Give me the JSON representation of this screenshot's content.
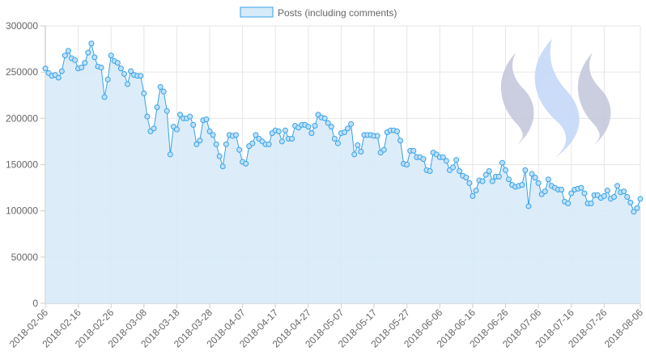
{
  "chart_data": {
    "type": "area",
    "series": [
      {
        "name": "Posts (including comments)",
        "color": "#36a2eb",
        "fill": "#d6eaf8",
        "values": [
          254000,
          249000,
          246000,
          247000,
          244000,
          251000,
          268000,
          273000,
          265000,
          263000,
          254000,
          255000,
          260000,
          271000,
          281000,
          266000,
          256000,
          255000,
          223000,
          242000,
          268000,
          262000,
          260000,
          254000,
          248000,
          237000,
          251000,
          247000,
          246000,
          246000,
          227000,
          202000,
          186000,
          189000,
          212000,
          234000,
          229000,
          208000,
          161000,
          191000,
          188000,
          204000,
          200000,
          200000,
          202000,
          193000,
          172000,
          176000,
          198000,
          199000,
          186000,
          182000,
          172000,
          159000,
          148000,
          172000,
          182000,
          181000,
          182000,
          166000,
          153000,
          151000,
          170000,
          173000,
          182000,
          178000,
          175000,
          172000,
          172000,
          184000,
          187000,
          186000,
          175000,
          187000,
          178000,
          178000,
          192000,
          190000,
          193000,
          193000,
          191000,
          184000,
          192000,
          204000,
          201000,
          200000,
          195000,
          191000,
          178000,
          173000,
          184000,
          185000,
          189000,
          194000,
          161000,
          171000,
          164000,
          182000,
          182000,
          182000,
          181000,
          181000,
          163000,
          166000,
          185000,
          187000,
          187000,
          186000,
          176000,
          151000,
          150000,
          165000,
          165000,
          158000,
          158000,
          156000,
          144000,
          143000,
          163000,
          161000,
          158000,
          158000,
          154000,
          144000,
          147000,
          155000,
          143000,
          138000,
          136000,
          130000,
          116000,
          122000,
          133000,
          132000,
          139000,
          143000,
          132000,
          137000,
          137000,
          152000,
          144000,
          134000,
          128000,
          126000,
          127000,
          128000,
          144000,
          105000,
          140000,
          136000,
          130000,
          118000,
          121000,
          134000,
          127000,
          125000,
          123000,
          123000,
          110000,
          108000,
          119000,
          123000,
          124000,
          125000,
          119000,
          108000,
          108000,
          117000,
          117000,
          114000,
          116000,
          122000,
          113000,
          115000,
          127000,
          120000,
          121000,
          115000,
          109000,
          99000,
          103000,
          113000
        ]
      }
    ],
    "x_start": "2018-02-06",
    "x_end": "2018-08-06",
    "x_tick_labels": [
      "2018-02-06",
      "2018-02-16",
      "2018-02-26",
      "2018-03-08",
      "2018-03-18",
      "2018-03-28",
      "2018-04-07",
      "2018-04-17",
      "2018-04-27",
      "2018-05-07",
      "2018-05-17",
      "2018-05-27",
      "2018-06-06",
      "2018-06-16",
      "2018-06-26",
      "2018-07-06",
      "2018-07-16",
      "2018-07-26",
      "2018-08-06"
    ],
    "y_tick_labels": [
      "0",
      "50000",
      "100000",
      "150000",
      "200000",
      "250000",
      "300000"
    ],
    "ylim": [
      0,
      300000
    ],
    "grid": true,
    "legend_position": "top-center"
  }
}
